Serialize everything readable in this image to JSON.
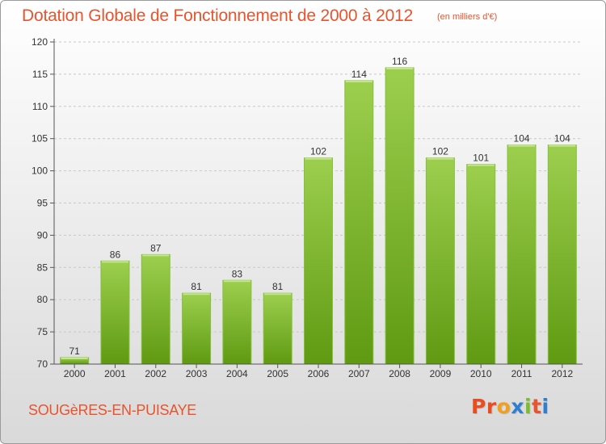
{
  "header": {
    "title": "Dotation Globale de Fonctionnement de 2000 à 2012",
    "subtitle": "(en milliers d'€)"
  },
  "footer": {
    "commune": "SOUGèRES-EN-PUISAYE",
    "logo": "Proxiti"
  },
  "colors": {
    "title": "#e8542d",
    "bar_light": "#9ccf4e",
    "bar_dark": "#5f9a12",
    "grid": "#c8c8c8",
    "logo_letters": [
      "#e84d1f",
      "#e84d1f",
      "#f0a01e",
      "#2f7fd0",
      "#7abf2a",
      "#e8542d",
      "#2f7fd0"
    ]
  },
  "chart_data": {
    "type": "bar",
    "title": "Dotation Globale de Fonctionnement de 2000 à 2012",
    "subtitle": "(en milliers d'€)",
    "categories": [
      "2000",
      "2001",
      "2002",
      "2003",
      "2004",
      "2005",
      "2006",
      "2007",
      "2008",
      "2009",
      "2010",
      "2011",
      "2012"
    ],
    "values": [
      71,
      86,
      87,
      81,
      83,
      81,
      102,
      114,
      116,
      102,
      101,
      104,
      104
    ],
    "ylim": [
      70,
      120
    ],
    "yticks": [
      70,
      75,
      80,
      85,
      90,
      95,
      100,
      105,
      110,
      115,
      120
    ],
    "grid": true,
    "xlabel": "",
    "ylabel": ""
  }
}
